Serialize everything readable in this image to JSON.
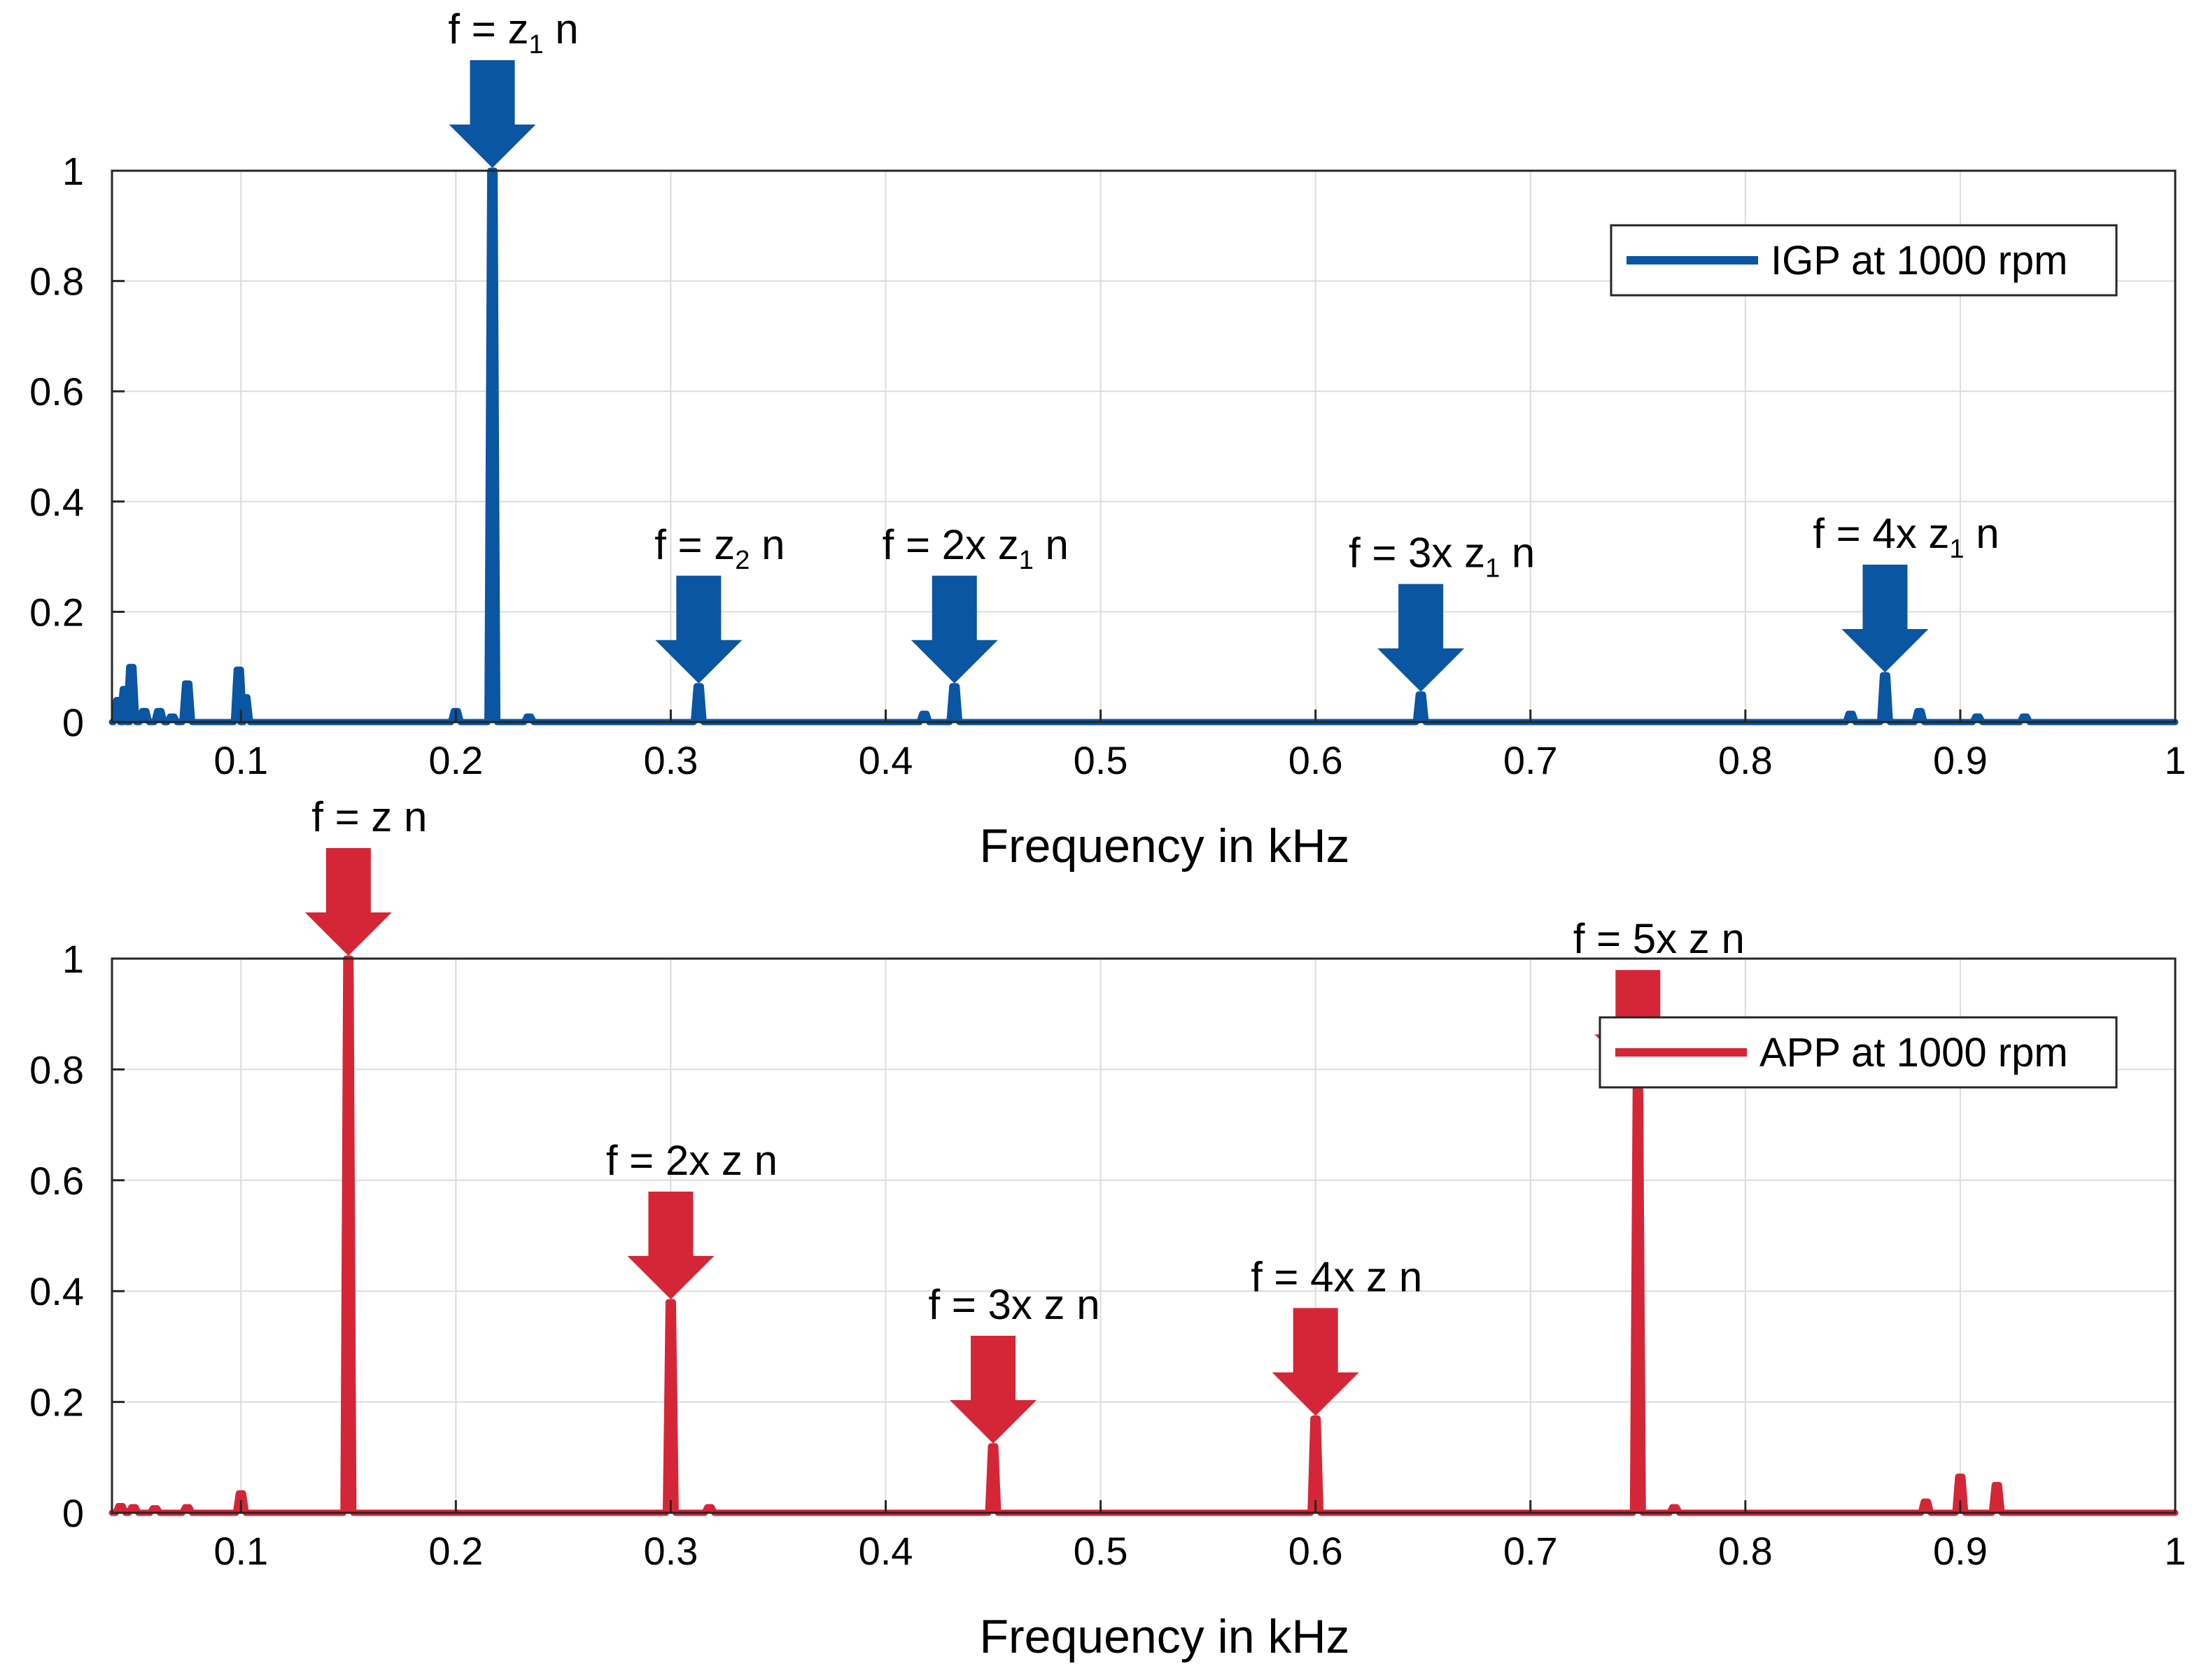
{
  "colors": {
    "top": "#0a56a3",
    "bottom": "#d52638"
  },
  "chart_data": [
    {
      "type": "line",
      "title": "",
      "xlabel": "Frequency in kHz",
      "ylabel": "",
      "xlim": [
        0.04,
        1.0
      ],
      "ylim": [
        0,
        1
      ],
      "xticks": [
        0.1,
        0.2,
        0.3,
        0.4,
        0.5,
        0.6,
        0.7,
        0.8,
        0.9,
        1
      ],
      "xtick_labels": [
        "0.1",
        "0.2",
        "0.3",
        "0.4",
        "0.5",
        "0.6",
        "0.7",
        "0.8",
        "0.9",
        "1"
      ],
      "yticks": [
        0,
        0.2,
        0.4,
        0.6,
        0.8,
        1
      ],
      "ytick_labels": [
        "0",
        "0.2",
        "0.4",
        "0.6",
        "0.8",
        "1"
      ],
      "grid": true,
      "legend_position": "top-right",
      "series": [
        {
          "name": "IGP at 1000 rpm",
          "color": "#0a56a3",
          "baseline": 0.0,
          "peaks": [
            {
              "x": 0.043,
              "y": 0.04
            },
            {
              "x": 0.046,
              "y": 0.06
            },
            {
              "x": 0.049,
              "y": 0.1
            },
            {
              "x": 0.055,
              "y": 0.02
            },
            {
              "x": 0.062,
              "y": 0.02
            },
            {
              "x": 0.068,
              "y": 0.01
            },
            {
              "x": 0.075,
              "y": 0.07
            },
            {
              "x": 0.099,
              "y": 0.095
            },
            {
              "x": 0.102,
              "y": 0.045
            },
            {
              "x": 0.2,
              "y": 0.02
            },
            {
              "x": 0.217,
              "y": 1.0
            },
            {
              "x": 0.234,
              "y": 0.01
            },
            {
              "x": 0.313,
              "y": 0.065
            },
            {
              "x": 0.418,
              "y": 0.015
            },
            {
              "x": 0.432,
              "y": 0.065
            },
            {
              "x": 0.649,
              "y": 0.05
            },
            {
              "x": 0.849,
              "y": 0.015
            },
            {
              "x": 0.865,
              "y": 0.085
            },
            {
              "x": 0.881,
              "y": 0.02
            },
            {
              "x": 0.908,
              "y": 0.01
            },
            {
              "x": 0.93,
              "y": 0.01
            }
          ]
        }
      ],
      "annotations": [
        {
          "x": 0.217,
          "y": 1.0,
          "prefix": "f = ",
          "var": "z",
          "sub": "1",
          "suffix": " n"
        },
        {
          "x": 0.313,
          "y": 0.065,
          "prefix": "f = ",
          "var": "z",
          "sub": "2",
          "suffix": " n"
        },
        {
          "x": 0.432,
          "y": 0.065,
          "prefix": "f = 2x ",
          "var": "z",
          "sub": "1",
          "suffix": " n"
        },
        {
          "x": 0.649,
          "y": 0.05,
          "prefix": "f = 3x ",
          "var": "z",
          "sub": "1",
          "suffix": " n"
        },
        {
          "x": 0.865,
          "y": 0.085,
          "prefix": "f = 4x ",
          "var": "z",
          "sub": "1",
          "suffix": " n"
        }
      ]
    },
    {
      "type": "line",
      "title": "",
      "xlabel": "Frequency in kHz",
      "ylabel": "",
      "xlim": [
        0.04,
        1.0
      ],
      "ylim": [
        0,
        1
      ],
      "xticks": [
        0.1,
        0.2,
        0.3,
        0.4,
        0.5,
        0.6,
        0.7,
        0.8,
        0.9,
        1
      ],
      "xtick_labels": [
        "0.1",
        "0.2",
        "0.3",
        "0.4",
        "0.5",
        "0.6",
        "0.7",
        "0.8",
        "0.9",
        "1"
      ],
      "yticks": [
        0,
        0.2,
        0.4,
        0.6,
        0.8,
        1
      ],
      "ytick_labels": [
        "0",
        "0.2",
        "0.4",
        "0.6",
        "0.8",
        "1"
      ],
      "grid": true,
      "legend_position": "top-right",
      "series": [
        {
          "name": "APP at 1000 rpm",
          "color": "#d52638",
          "baseline": 0.0,
          "peaks": [
            {
              "x": 0.044,
              "y": 0.012
            },
            {
              "x": 0.05,
              "y": 0.01
            },
            {
              "x": 0.06,
              "y": 0.008
            },
            {
              "x": 0.075,
              "y": 0.01
            },
            {
              "x": 0.1,
              "y": 0.035
            },
            {
              "x": 0.15,
              "y": 1.0
            },
            {
              "x": 0.3,
              "y": 0.38
            },
            {
              "x": 0.318,
              "y": 0.01
            },
            {
              "x": 0.45,
              "y": 0.12
            },
            {
              "x": 0.6,
              "y": 0.17
            },
            {
              "x": 0.75,
              "y": 0.78
            },
            {
              "x": 0.767,
              "y": 0.01
            },
            {
              "x": 0.884,
              "y": 0.02
            },
            {
              "x": 0.9,
              "y": 0.065
            },
            {
              "x": 0.917,
              "y": 0.05
            }
          ]
        }
      ],
      "annotations": [
        {
          "x": 0.15,
          "y": 1.0,
          "prefix": "f = ",
          "var": "z",
          "sub": "",
          "suffix": " n"
        },
        {
          "x": 0.3,
          "y": 0.38,
          "prefix": "f = 2x ",
          "var": "z",
          "sub": "",
          "suffix": " n"
        },
        {
          "x": 0.45,
          "y": 0.12,
          "prefix": "f = 3x ",
          "var": "z",
          "sub": "",
          "suffix": " n"
        },
        {
          "x": 0.6,
          "y": 0.17,
          "prefix": "f = 4x ",
          "var": "z",
          "sub": "",
          "suffix": " n"
        },
        {
          "x": 0.75,
          "y": 0.78,
          "prefix": "f = 5x ",
          "var": "z",
          "sub": "",
          "suffix": " n"
        }
      ]
    }
  ]
}
